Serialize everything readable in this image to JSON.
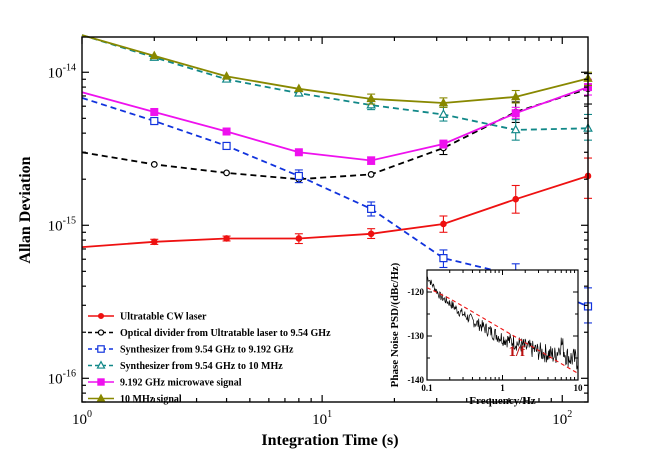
{
  "chart_data": [
    {
      "type": "line",
      "xlabel": "Integration Time (s)",
      "ylabel": "Allan Deviation",
      "xscale": "log",
      "yscale": "log",
      "xlim": [
        1,
        128
      ],
      "ylim": [
        7e-17,
        1.7e-14
      ],
      "xticks": [
        {
          "value": 1,
          "base": "10",
          "exp": "0"
        },
        {
          "value": 10,
          "base": "10",
          "exp": "1"
        },
        {
          "value": 100,
          "base": "10",
          "exp": "2"
        }
      ],
      "yticks": [
        {
          "value": 1e-16,
          "base": "10",
          "exp": "-16"
        },
        {
          "value": 1e-15,
          "base": "10",
          "exp": "-15"
        },
        {
          "value": 1e-14,
          "base": "10",
          "exp": "-14"
        }
      ],
      "legend_position": "bottom-left",
      "x": [
        1,
        2,
        4,
        8,
        16,
        32,
        64,
        128
      ],
      "series": [
        {
          "name": "Ultratable CW laser",
          "color": "#ee1111",
          "marker": "filled-circle",
          "dash": "solid",
          "values": [
            7.2e-16,
            7.8e-16,
            8.2e-16,
            8.2e-16,
            8.8e-16,
            1.02e-15,
            1.48e-15,
            2.1e-15
          ],
          "err_low": [
            null,
            7.5e-16,
            7.9e-16,
            7.6e-16,
            8.2e-16,
            9e-16,
            1.2e-15,
            1.5e-15
          ],
          "err_high": [
            null,
            8.1e-16,
            8.5e-16,
            8.8e-16,
            9.5e-16,
            1.15e-15,
            1.82e-15,
            2.75e-15
          ]
        },
        {
          "name": "Optical divider from Ultratable laser to 9.54 GHz",
          "color": "#000000",
          "marker": "open-circle",
          "dash": "dashed",
          "values": [
            3e-15,
            2.5e-15,
            2.2e-15,
            2e-15,
            2.15e-15,
            3.2e-15,
            5.5e-15,
            7.8e-15
          ],
          "err_low": [
            null,
            null,
            null,
            null,
            null,
            2.9e-15,
            4.7e-15,
            6.2e-15
          ],
          "err_high": [
            null,
            null,
            null,
            null,
            null,
            3.5e-15,
            6.4e-15,
            9.8e-15
          ]
        },
        {
          "name": "Synthesizer from 9.54 GHz to 9.192 GHz",
          "color": "#1133dd",
          "marker": "open-square",
          "dash": "dashed",
          "values": [
            6.8e-15,
            4.8e-15,
            3.3e-15,
            2.1e-15,
            1.28e-15,
            6.1e-16,
            4.7e-16,
            2.95e-16
          ],
          "err_low": [
            null,
            null,
            null,
            1.9e-15,
            1.15e-15,
            5.3e-16,
            3.9e-16,
            2.3e-16
          ],
          "err_high": [
            null,
            null,
            null,
            2.3e-15,
            1.42e-15,
            6.9e-16,
            5.6e-16,
            3.9e-16
          ]
        },
        {
          "name": "Synthesizer from 9.54 GHz to 10 MHz",
          "color": "#118888",
          "marker": "open-triangle",
          "dash": "dashed",
          "values": [
            1.75e-14,
            1.25e-14,
            9e-15,
            7.3e-15,
            6.1e-15,
            5.3e-15,
            4.2e-15,
            4.3e-15
          ],
          "err_low": [
            null,
            null,
            null,
            null,
            5.7e-15,
            4.8e-15,
            3.6e-15,
            3.6e-15
          ],
          "err_high": [
            null,
            null,
            null,
            null,
            6.6e-15,
            5.9e-15,
            4.9e-15,
            5.3e-15
          ]
        },
        {
          "name": "9.192 GHz microwave signal",
          "color": "#ee11ee",
          "marker": "filled-square",
          "dash": "solid",
          "values": [
            7.4e-15,
            5.5e-15,
            4.1e-15,
            3e-15,
            2.65e-15,
            3.4e-15,
            5.4e-15,
            8e-15
          ],
          "err_low": [
            null,
            null,
            null,
            null,
            2.5e-15,
            3.2e-15,
            5e-15,
            7.1e-15
          ],
          "err_high": [
            null,
            null,
            null,
            null,
            2.8e-15,
            3.6e-15,
            5.9e-15,
            9e-15
          ]
        },
        {
          "name": "10 MHz signal",
          "color": "#888800",
          "marker": "filled-triangle",
          "dash": "solid",
          "values": [
            1.75e-14,
            1.28e-14,
            9.4e-15,
            7.8e-15,
            6.7e-15,
            6.3e-15,
            6.9e-15,
            9.1e-15
          ],
          "err_low": [
            null,
            null,
            null,
            null,
            6.2e-15,
            5.9e-15,
            6.3e-15,
            8.2e-15
          ],
          "err_high": [
            null,
            null,
            null,
            null,
            7.2e-15,
            6.8e-15,
            7.6e-15,
            1e-14
          ]
        }
      ]
    },
    {
      "type": "line",
      "xlabel": "Frequency/Hz",
      "ylabel": "Phase Noise PSD/(dBc/Hz)",
      "xscale": "log",
      "xlim": [
        0.1,
        10
      ],
      "ylim": [
        -140,
        -115
      ],
      "xticks": [
        {
          "value": 0.1,
          "label": "0.1"
        },
        {
          "value": 1,
          "label": "1"
        },
        {
          "value": 10,
          "label": "10"
        }
      ],
      "yticks": [
        -140,
        -130,
        -120
      ],
      "annotation": "1/f",
      "series": [
        {
          "name": "",
          "color": "#000000",
          "style": "noisy-spectrum",
          "x": [
            0.1,
            0.12,
            0.15,
            0.2,
            0.25,
            0.3,
            0.4,
            0.5,
            0.7,
            1,
            1.5,
            2,
            3,
            4,
            5,
            6,
            7,
            8,
            10
          ],
          "values": [
            -116.5,
            -118.5,
            -121,
            -122.5,
            -124,
            -125,
            -126.5,
            -127.5,
            -129,
            -130.5,
            -131.5,
            -132.5,
            -133.5,
            -134,
            -134.5,
            -131.5,
            -134.5,
            -135,
            -135.5
          ]
        },
        {
          "name": "",
          "color": "#ee1111",
          "style": "dashed",
          "x": [
            0.1,
            0.2,
            0.4,
            1,
            2,
            4,
            6,
            10
          ],
          "values": [
            -119,
            -121.5,
            -124.5,
            -128.5,
            -131.5,
            -134.5,
            -136.3,
            -138.5
          ]
        }
      ]
    }
  ]
}
